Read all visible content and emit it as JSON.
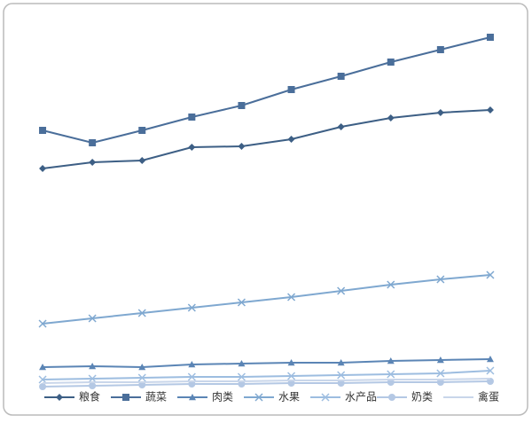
{
  "chart_data": {
    "type": "line",
    "categories": [
      null,
      null,
      null,
      null,
      null,
      null,
      null,
      null,
      null,
      null
    ],
    "ylim": [
      0,
      100
    ],
    "legend": "bottom",
    "series": [
      {
        "name": "粮食",
        "color": "#3d5f85",
        "marker": "diamond",
        "values": [
          62.5,
          64.25,
          64.75,
          68.5,
          68.75,
          70.75,
          74.25,
          76.75,
          78.25,
          79
        ]
      },
      {
        "name": "蔬菜",
        "color": "#4a6e9a",
        "marker": "square",
        "values": [
          73.25,
          69.75,
          73.25,
          77,
          80.25,
          84.75,
          88.5,
          92.5,
          96,
          99.5
        ]
      },
      {
        "name": "肉类",
        "color": "#5b85b5",
        "marker": "triangle",
        "values": [
          6.5,
          6.75,
          6.5,
          7.25,
          7.5,
          7.75,
          7.75,
          8.25,
          8.5,
          8.75
        ]
      },
      {
        "name": "水果",
        "color": "#7fa8d0",
        "marker": "x",
        "values": [
          18.75,
          20.25,
          21.75,
          23.25,
          24.75,
          26.25,
          28,
          29.75,
          31.25,
          32.5
        ]
      },
      {
        "name": "水产品",
        "color": "#9dbde0",
        "marker": "x",
        "values": [
          3,
          3.25,
          3.5,
          3.75,
          3.75,
          4,
          4.25,
          4.5,
          4.75,
          5.5
        ]
      },
      {
        "name": "奶类",
        "color": "#b4c8e4",
        "marker": "circle",
        "values": [
          1,
          1.25,
          1.5,
          1.75,
          1.75,
          2,
          2,
          2.25,
          2.25,
          2.5
        ]
      },
      {
        "name": "禽蛋",
        "color": "#c9d6ea",
        "marker": "none",
        "values": [
          2,
          2.25,
          2.25,
          2.5,
          2.5,
          2.75,
          2.75,
          3,
          3,
          3.25
        ]
      }
    ]
  }
}
